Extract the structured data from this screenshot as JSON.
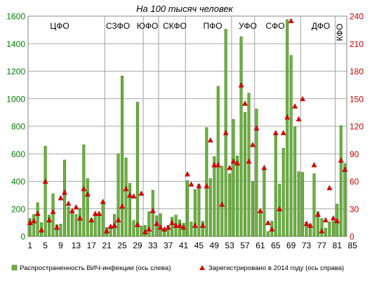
{
  "chart_data": {
    "type": "bar",
    "title": "На 100 тысяч человек",
    "districts": [
      "ЦФО",
      "СЗФО",
      "ЮФО",
      "СКФО",
      "ПФО",
      "УФО",
      "СФО",
      "ДФО",
      "КФО"
    ],
    "x_tick_labels": [
      "1",
      "5",
      "9",
      "13",
      "17",
      "21",
      "25",
      "29",
      "33",
      "37",
      "41",
      "45",
      "49",
      "53",
      "57",
      "61",
      "65",
      "69",
      "73",
      "77",
      "81",
      "85"
    ],
    "y_left": {
      "ticks": [
        0,
        200,
        400,
        600,
        800,
        1000,
        1200,
        1400,
        1600
      ],
      "ylim": [
        0,
        1600
      ],
      "color": "#008000"
    },
    "y_right": {
      "ticks": [
        0,
        30,
        60,
        90,
        120,
        150,
        180,
        210,
        240
      ],
      "ylim": [
        0,
        240
      ],
      "color": "#cc0000"
    },
    "series": [
      {
        "name": "Распространенность ВИЧ-инфекции  (ось слева)",
        "kind": "bar",
        "axis": "left",
        "color": "#6db33f",
        "values": [
          130,
          160,
          245,
          100,
          655,
          155,
          310,
          85,
          90,
          555,
          215,
          175,
          160,
          205,
          665,
          420,
          130,
          155,
          165,
          245,
          65,
          75,
          160,
          600,
          1165,
          570,
          385,
          115,
          975,
          75,
          80,
          180,
          335,
          150,
          165,
          55,
          80,
          140,
          155,
          120,
          95,
          405,
          105,
          340,
          380,
          110,
          790,
          420,
          580,
          1090,
          510,
          1505,
          455,
          850,
          585,
          1450,
          900,
          1040,
          400,
          925,
          180,
          490,
          35,
          110,
          750,
          380,
          640,
          1575,
          1315,
          795,
          470,
          465,
          105,
          90,
          455,
          180,
          130,
          60,
          105,
          110,
          235,
          805,
          530
        ],
        "legend_marker": "bar"
      },
      {
        "name": "Зарегистрировано в 2014 году (ось справа)",
        "kind": "scatter",
        "axis": "right",
        "color": "#dd0000",
        "marker": "triangle",
        "values": [
          15,
          17,
          25,
          7,
          60,
          18,
          27,
          10,
          42,
          48,
          36,
          28,
          32,
          20,
          52,
          46,
          18,
          25,
          25,
          38,
          6,
          11,
          12,
          18,
          33,
          52,
          45,
          44,
          13,
          47,
          5,
          8,
          28,
          14,
          10,
          8,
          10,
          15,
          12,
          12,
          10,
          68,
          57,
          12,
          55,
          12,
          55,
          105,
          78,
          78,
          35,
          113,
          75,
          82,
          80,
          165,
          145,
          82,
          100,
          118,
          28,
          75,
          15,
          8,
          113,
          30,
          113,
          130,
          235,
          142,
          128,
          150,
          14,
          12,
          78,
          24,
          6,
          18,
          53,
          20,
          17,
          83,
          73
        ],
        "legend_marker": "triangle"
      }
    ]
  }
}
